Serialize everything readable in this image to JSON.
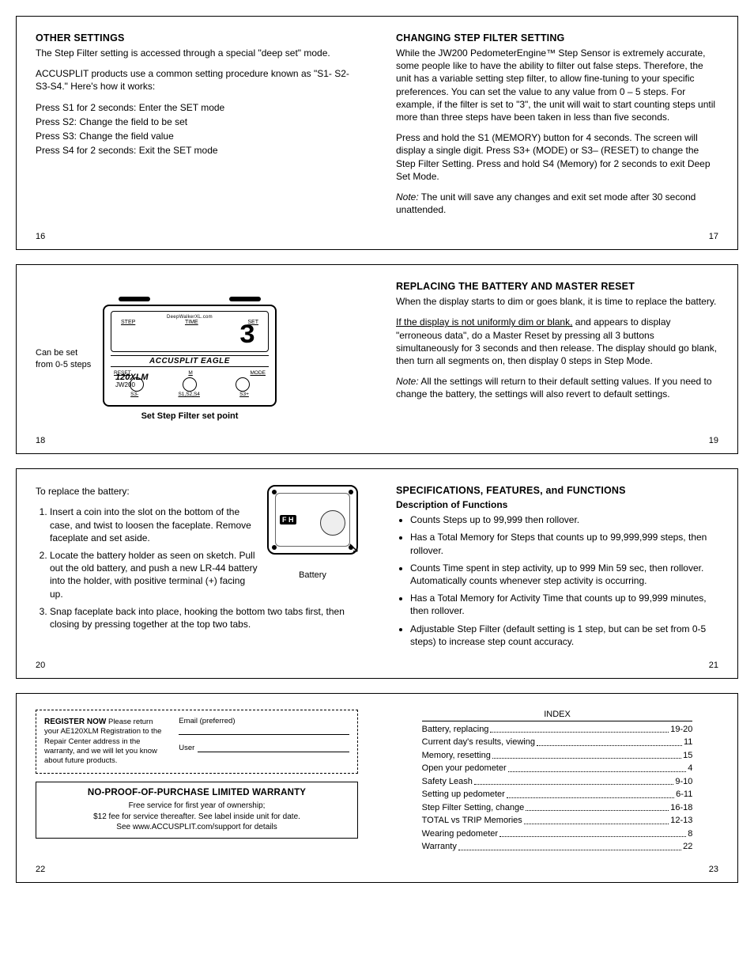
{
  "p16": {
    "h": "OTHER SETTINGS",
    "a": "The Step Filter setting is accessed through a special \"deep set\" mode.",
    "b": "ACCUSPLIT products use a common setting procedure known as \"S1- S2-S3-S4.\" Here's how it works:",
    "s1": "Press S1 for 2 seconds: Enter the SET mode",
    "s2": "Press S2: Change the field to be set",
    "s3": "Press S3: Change the field value",
    "s4": "Press S4 for 2 seconds: Exit the SET mode",
    "pg": "16"
  },
  "p17": {
    "h": "CHANGING STEP FILTER SETTING",
    "a": "While the JW200 PedometerEngine™ Step Sensor is extremely accurate, some people like to have the ability to filter out false steps. Therefore, the unit has a variable setting step filter, to allow fine-tuning to your specific preferences. You can set the value to any value from 0 – 5 steps. For example, if the filter is set to \"3\", the unit will wait to start counting steps until more than three steps have been taken in less than five seconds.",
    "b": "Press and hold the S1 (MEMORY) button for 4 seconds. The screen will display a single digit. Press S3+ (MODE) or S3– (RESET) to change the Step Filter Setting. Press and hold S4 (Memory) for 2 seconds to exit Deep Set Mode.",
    "note_l": "Note:",
    "note": " The unit will save any changes and exit set mode after 30 second unattended.",
    "pg": "17"
  },
  "p18": {
    "callout": "Can be set from 0-5 steps",
    "screen_top": "DeepWalkerXL.com",
    "lbl_step": "STEP",
    "lbl_time": "TIME",
    "lbl_set": "SET",
    "digit": "3",
    "brand": "ACCUSPLIT EAGLE",
    "reset": "RESET",
    "m": "M",
    "mode": "MODE",
    "model_a": "120XLM",
    "model_b": "JW200",
    "s3m": "S3-",
    "s124": "S1,S2,S4",
    "s3p": "S3+",
    "caption": "Set Step Filter set point",
    "pg": "18"
  },
  "p19": {
    "h": "REPLACING THE BATTERY AND MASTER RESET",
    "a": "When the display starts to dim or goes blank, it is time to replace the battery.",
    "b_u": "If the display is not uniformly dim or blank,",
    "b_rest": " and appears to display \"erroneous data\", do a Master Reset by pressing all 3 buttons simultaneously for 3 seconds and then release. The display should go blank, then turn all segments on, then display 0 steps in Step Mode.",
    "note_l": "Note:",
    "note": " All the settings will return to their default setting values. If you need to change the battery, the settings will also revert to default settings.",
    "pg": "19"
  },
  "p20": {
    "intro": "To replace the battery:",
    "li1": "Insert a coin into the slot on the bottom of the case, and twist to loosen the faceplate. Remove faceplate and set aside.",
    "li2": "Locate the battery holder as seen on sketch. Pull out the old battery, and push a new LR-44 battery into the holder, with positive terminal (+) facing up.",
    "li3": "Snap faceplate back into place, hooking the bottom two tabs first, then closing by pressing together at the top two tabs.",
    "fh": "F H",
    "bat": "Battery",
    "pg": "20"
  },
  "p21": {
    "h": "SPECIFICATIONS, FEATURES, and FUNCTIONS",
    "sub": "Description of Functions",
    "li1": "Counts Steps up to 99,999 then rollover.",
    "li2": "Has a Total Memory for Steps that counts up to 99,999,999 steps, then rollover.",
    "li3": "Counts Time spent in step activity, up to 999 Min 59 sec, then rollover. Automatically counts whenever step activity is occurring.",
    "li4": "Has a Total Memory for Activity Time that counts up to 99,999 minutes, then rollover.",
    "li5": "Adjustable Step Filter (default setting is 1 step, but can be set from 0-5 steps) to increase step count accuracy.",
    "pg": "21"
  },
  "p22": {
    "reg_h": "REGISTER NOW",
    "reg_t": " Please return your AE120XLM Registration to the Repair Center address in the warranty, and we will let you know about future products.",
    "email": "Email (preferred)",
    "user": "User",
    "w_h": "NO-PROOF-OF-PURCHASE LIMITED WARRANTY",
    "w1": "Free service for first year of ownership;",
    "w2": "$12 fee for service thereafter. See label inside unit for date.",
    "w3": "See www.ACCUSPLIT.com/support for details",
    "pg": "22"
  },
  "p23": {
    "h": "INDEX",
    "rows": [
      {
        "l": "Battery, replacing",
        "p": "19-20"
      },
      {
        "l": "Current day's results, viewing",
        "p": "11"
      },
      {
        "l": "Memory, resetting",
        "p": "15"
      },
      {
        "l": "Open your pedometer",
        "p": "4"
      },
      {
        "l": "Safety Leash",
        "p": "9-10"
      },
      {
        "l": "Setting up pedometer",
        "p": "6-11"
      },
      {
        "l": "Step Filter Setting, change",
        "p": "16-18"
      },
      {
        "l": "TOTAL vs TRIP Memories",
        "p": "12-13"
      },
      {
        "l": "Wearing pedometer",
        "p": "8"
      },
      {
        "l": "Warranty",
        "p": "22"
      }
    ],
    "pg": "23"
  }
}
